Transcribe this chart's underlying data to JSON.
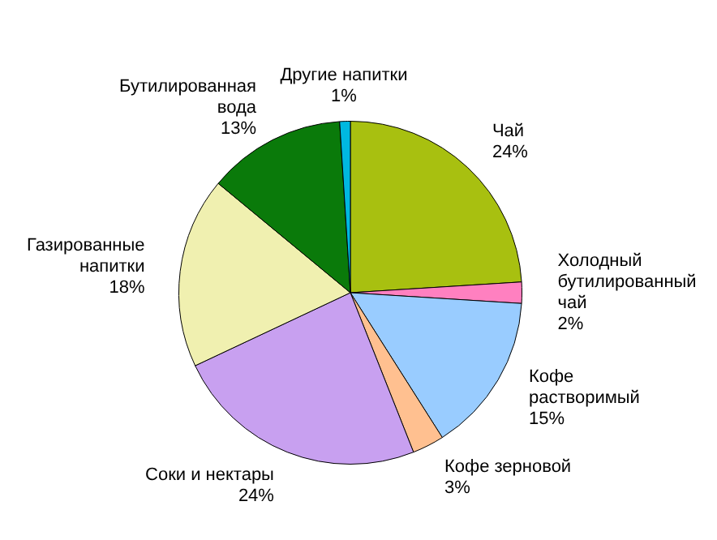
{
  "chart_data": {
    "type": "pie",
    "categories": [
      "Чай",
      "Холодный бутилированный чай",
      "Кофе растворимый",
      "Кофе зерновой",
      "Соки и нектары",
      "Газированные напитки",
      "Бутилированная вода",
      "Другие напитки"
    ],
    "values": [
      24,
      2,
      15,
      3,
      24,
      18,
      13,
      1
    ],
    "value_labels": [
      "24%",
      "2%",
      "15%",
      "3%",
      "24%",
      "18%",
      "13%",
      "1%"
    ],
    "colors": [
      "#a8c010",
      "#ff80c0",
      "#99ccff",
      "#ffc090",
      "#c8a0f0",
      "#f0f0b0",
      "#0a7a0a",
      "#00b8e0"
    ],
    "legend": false
  }
}
